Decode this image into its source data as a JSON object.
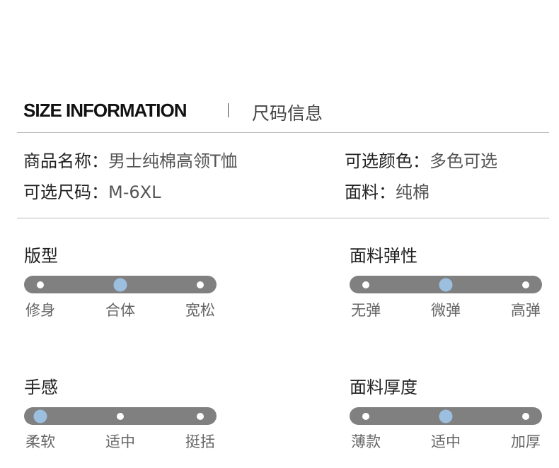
{
  "header": {
    "title_en": "SIZE INFORMATION",
    "title_cn": "尺码信息"
  },
  "info": {
    "name_label": "商品名称：",
    "name_value": "男士纯棉高领T恤",
    "color_label": "可选颜色：",
    "color_value": "多色可选",
    "size_label": "可选尺码：",
    "size_value": "M-6XL",
    "fabric_label": "面料：",
    "fabric_value": "纯棉"
  },
  "scales": [
    {
      "title": "版型",
      "options": [
        "修身",
        "合体",
        "宽松"
      ],
      "selected": 1
    },
    {
      "title": "面料弹性",
      "options": [
        "无弹",
        "微弹",
        "高弹"
      ],
      "selected": 1
    },
    {
      "title": "手感",
      "options": [
        "柔软",
        "适中",
        "挺括"
      ],
      "selected": 0
    },
    {
      "title": "面料厚度",
      "options": [
        "薄款",
        "适中",
        "加厚"
      ],
      "selected": 1
    }
  ],
  "colors": {
    "bar": "#808080",
    "selected": "#9cbfdf"
  }
}
